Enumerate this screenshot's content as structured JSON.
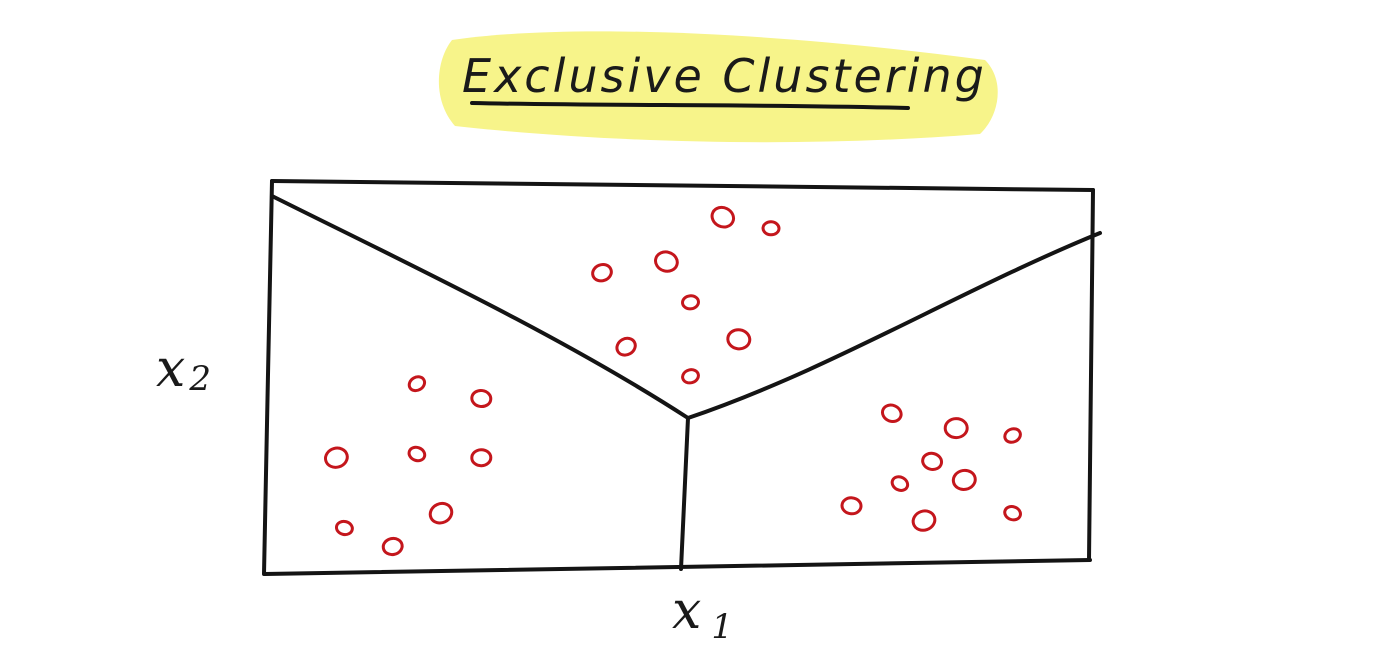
{
  "title": {
    "text": "Exclusive Clustering",
    "highlight_color": "#f7f48a"
  },
  "axes": {
    "x_label": "x",
    "x_sub": "1",
    "y_label": "x",
    "y_sub": "2"
  },
  "colors": {
    "ink": "#141414",
    "points": "#c4161c"
  },
  "chart_data": {
    "type": "scatter",
    "xlim": [
      0,
      1
    ],
    "ylim": [
      0,
      1
    ],
    "clusters": [
      {
        "region": "left",
        "points": [
          {
            "x": 0.17,
            "y": 0.49
          },
          {
            "x": 0.25,
            "y": 0.45
          },
          {
            "x": 0.07,
            "y": 0.29
          },
          {
            "x": 0.17,
            "y": 0.3
          },
          {
            "x": 0.25,
            "y": 0.29
          },
          {
            "x": 0.2,
            "y": 0.14
          },
          {
            "x": 0.08,
            "y": 0.1
          },
          {
            "x": 0.14,
            "y": 0.05
          }
        ]
      },
      {
        "region": "top",
        "points": [
          {
            "x": 0.55,
            "y": 0.94
          },
          {
            "x": 0.61,
            "y": 0.91
          },
          {
            "x": 0.4,
            "y": 0.79
          },
          {
            "x": 0.48,
            "y": 0.82
          },
          {
            "x": 0.51,
            "y": 0.71
          },
          {
            "x": 0.43,
            "y": 0.59
          },
          {
            "x": 0.57,
            "y": 0.61
          },
          {
            "x": 0.51,
            "y": 0.51
          }
        ]
      },
      {
        "region": "right",
        "points": [
          {
            "x": 0.76,
            "y": 0.41
          },
          {
            "x": 0.84,
            "y": 0.37
          },
          {
            "x": 0.91,
            "y": 0.35
          },
          {
            "x": 0.81,
            "y": 0.28
          },
          {
            "x": 0.85,
            "y": 0.23
          },
          {
            "x": 0.77,
            "y": 0.22
          },
          {
            "x": 0.71,
            "y": 0.16
          },
          {
            "x": 0.8,
            "y": 0.12
          },
          {
            "x": 0.91,
            "y": 0.14
          }
        ]
      }
    ]
  }
}
